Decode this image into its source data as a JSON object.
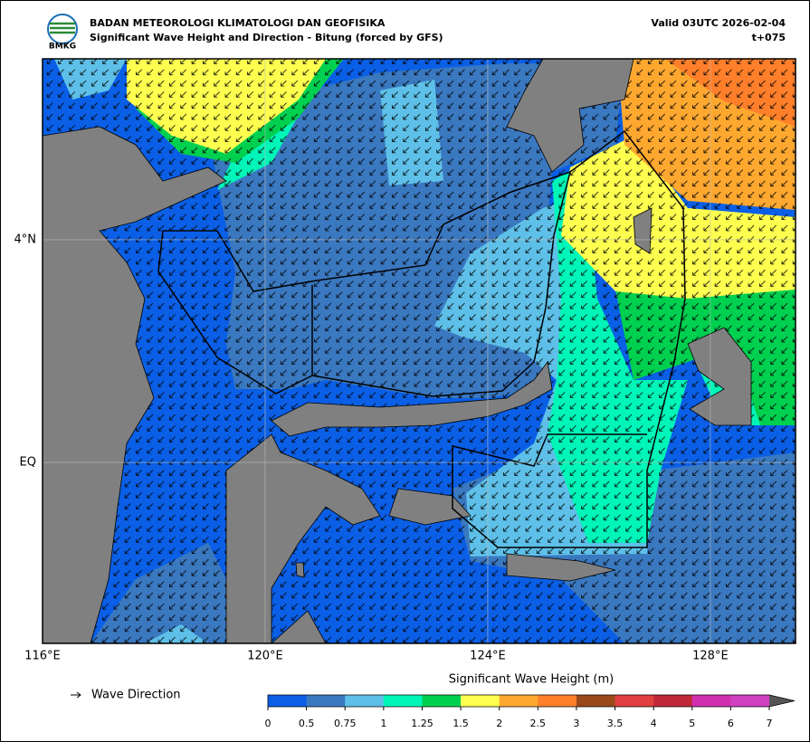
{
  "header": {
    "title": "BADAN METEOROLOGI KLIMATOLOGI DAN GEOFISIKA",
    "subtitle": "Significant Wave Height and Direction - Bitung (forced by GFS)",
    "valid": "Valid 03UTC 2026-02-04",
    "step": "t+075",
    "logo": "BMKG"
  },
  "map": {
    "lon_range": [
      116,
      129.53
    ],
    "lat_range": [
      -3.25,
      7.25
    ],
    "x_ticks": [
      {
        "value": 116,
        "label": "116°E"
      },
      {
        "value": 120,
        "label": "120°E"
      },
      {
        "value": 124,
        "label": "124°E"
      },
      {
        "value": 128,
        "label": "128°E"
      }
    ],
    "y_ticks": [
      {
        "value": 4,
        "label": "4°N"
      },
      {
        "value": 0,
        "label": "EQ"
      }
    ]
  },
  "legend": {
    "label": "Wave Direction"
  },
  "colorbar": {
    "title": "Significant Wave Height (m)",
    "ticks": [
      0,
      0.5,
      0.75,
      1,
      1.25,
      1.5,
      2,
      2.5,
      3,
      3.5,
      4,
      5,
      6,
      7
    ],
    "colors": [
      "#0a5fe6",
      "#3a78c0",
      "#5ec0e8",
      "#00f5b8",
      "#00d050",
      "#ffff50",
      "#ffa830",
      "#ff7f2a",
      "#9a4a1a",
      "#e04040",
      "#c02838",
      "#d030b0",
      "#d040c0"
    ],
    "over_color": "#555555"
  }
}
